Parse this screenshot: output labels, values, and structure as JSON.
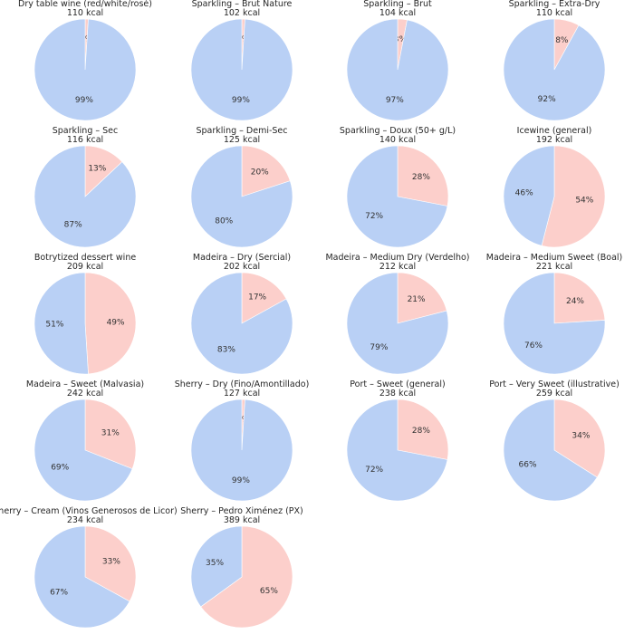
{
  "chart_data": {
    "type": "pie",
    "colors": {
      "first": "#fccfcb",
      "second": "#b9d0f5"
    },
    "charts": [
      {
        "title": "Dry table wine (red/white/rosé)",
        "subtitle": "110 kcal",
        "values": [
          1,
          99
        ]
      },
      {
        "title": "Sparkling – Brut Nature",
        "subtitle": "102 kcal",
        "values": [
          1,
          99
        ]
      },
      {
        "title": "Sparkling – Brut",
        "subtitle": "104 kcal",
        "values": [
          3,
          97
        ]
      },
      {
        "title": "Sparkling – Extra-Dry",
        "subtitle": "110 kcal",
        "values": [
          8,
          92
        ]
      },
      {
        "title": "Sparkling – Sec",
        "subtitle": "116 kcal",
        "values": [
          13,
          87
        ]
      },
      {
        "title": "Sparkling – Demi-Sec",
        "subtitle": "125 kcal",
        "values": [
          20,
          80
        ]
      },
      {
        "title": "Sparkling – Doux (50+ g/L)",
        "subtitle": "140 kcal",
        "values": [
          28,
          72
        ]
      },
      {
        "title": "Icewine (general)",
        "subtitle": "192 kcal",
        "values": [
          54,
          46
        ]
      },
      {
        "title": "Botrytized dessert wine",
        "subtitle": "209 kcal",
        "values": [
          49,
          51
        ]
      },
      {
        "title": "Madeira – Dry (Sercial)",
        "subtitle": "202 kcal",
        "values": [
          17,
          83
        ]
      },
      {
        "title": "Madeira – Medium Dry (Verdelho)",
        "subtitle": "212 kcal",
        "values": [
          21,
          79
        ]
      },
      {
        "title": "Madeira – Medium Sweet (Boal)",
        "subtitle": "221 kcal",
        "values": [
          24,
          76
        ]
      },
      {
        "title": "Madeira – Sweet (Malvasia)",
        "subtitle": "242 kcal",
        "values": [
          31,
          69
        ]
      },
      {
        "title": "Sherry – Dry (Fino/Amontillado)",
        "subtitle": "127 kcal",
        "values": [
          1,
          99
        ]
      },
      {
        "title": "Port – Sweet (general)",
        "subtitle": "238 kcal",
        "values": [
          28,
          72
        ]
      },
      {
        "title": "Port – Very Sweet (illustrative)",
        "subtitle": "259 kcal",
        "values": [
          34,
          66
        ]
      },
      {
        "title": "Sherry – Cream (Vinos Generosos de Licor)",
        "subtitle": "234 kcal",
        "values": [
          33,
          67
        ]
      },
      {
        "title": "Sherry – Pedro Ximénez (PX)",
        "subtitle": "389 kcal",
        "values": [
          65,
          35
        ]
      }
    ]
  }
}
